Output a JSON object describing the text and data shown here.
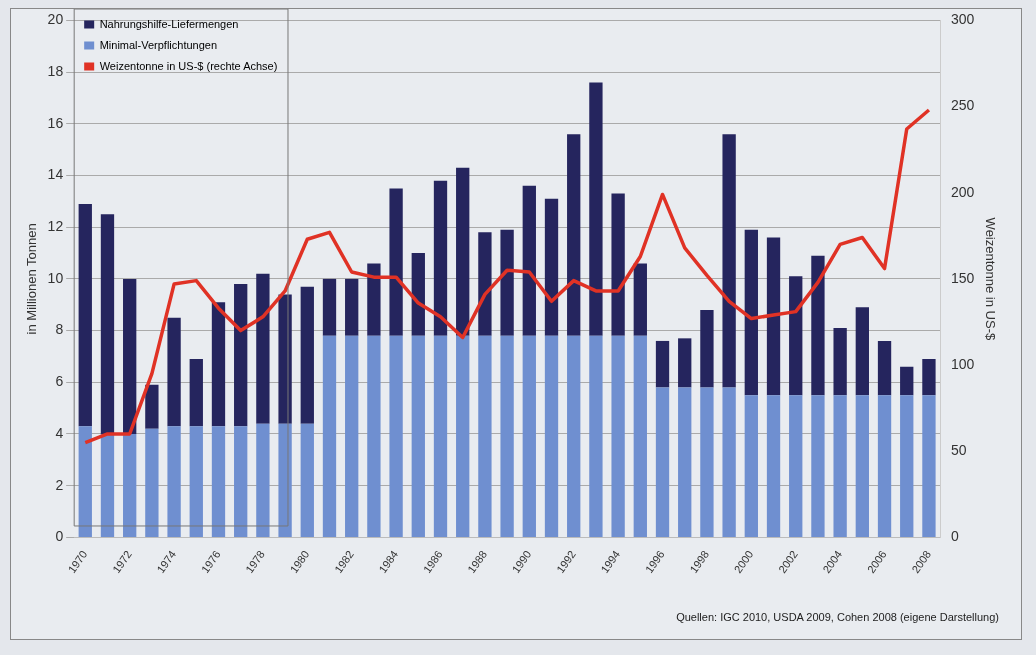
{
  "chart_data": {
    "type": "bar",
    "stacked": true,
    "categories": [
      "1970",
      null,
      "1972",
      null,
      "1974",
      null,
      "1976",
      null,
      "1978",
      null,
      "1980",
      null,
      "1982",
      null,
      "1984",
      null,
      "1986",
      null,
      "1988",
      null,
      "1990",
      null,
      "1992",
      null,
      "1994",
      null,
      "1996",
      null,
      "1998",
      null,
      "2000",
      null,
      "2002",
      null,
      "2004",
      null,
      "2006",
      null,
      "2008"
    ],
    "series": [
      {
        "name": "Minimal-Verpflichtungen",
        "color": "#6f8fd0",
        "values": [
          4.3,
          4.0,
          4.0,
          4.2,
          4.3,
          4.3,
          4.3,
          4.3,
          4.4,
          4.4,
          4.4,
          7.8,
          7.8,
          7.8,
          7.8,
          7.8,
          7.8,
          7.8,
          7.8,
          7.8,
          7.8,
          7.8,
          7.8,
          7.8,
          7.8,
          7.8,
          5.8,
          5.8,
          5.8,
          5.8,
          5.5,
          5.5,
          5.5,
          5.5,
          5.5,
          5.5,
          5.5,
          5.5,
          5.5
        ]
      },
      {
        "name": "Nahrungshilfe-Liefermengen",
        "color": "#25255e",
        "values": [
          8.6,
          8.5,
          6.0,
          1.7,
          4.2,
          2.6,
          4.8,
          5.5,
          5.8,
          5.0,
          5.3,
          2.2,
          2.2,
          2.8,
          5.7,
          3.2,
          6.0,
          6.5,
          4.0,
          4.1,
          5.8,
          5.3,
          7.8,
          9.8,
          5.5,
          2.8,
          1.8,
          1.9,
          3.0,
          9.8,
          6.4,
          6.1,
          4.6,
          5.4,
          2.6,
          3.4,
          2.1,
          1.1,
          1.4
        ]
      },
      {
        "name": "Weizentonne in US-$ (rechte Achse)",
        "type": "line",
        "axis": "y2",
        "color": "#e03225",
        "values": [
          55,
          60,
          60,
          95,
          147,
          149,
          133,
          120,
          128,
          143,
          173,
          177,
          154,
          151,
          151,
          136,
          128,
          116,
          141,
          155,
          154,
          137,
          149,
          143,
          143,
          163,
          199,
          168,
          152,
          137,
          127,
          129,
          131,
          148,
          170,
          174,
          156,
          237,
          248
        ]
      }
    ],
    "ylabel": "in Millionen Tonnen",
    "y2label": "Weizentonne in US-$",
    "ylim": [
      0,
      20
    ],
    "yticks": [
      0,
      2,
      4,
      6,
      8,
      10,
      12,
      14,
      16,
      18,
      20
    ],
    "y2lim": [
      0,
      300
    ],
    "y2ticks": [
      0,
      50,
      100,
      150,
      200,
      250,
      300
    ],
    "grid": "y",
    "legend": "top left",
    "marker": "none",
    "line_style": "solid",
    "annotations": [
      "Quellen: IGC 2010, USDA 2009, Cohen 2008 (eigene Darstellung)"
    ]
  }
}
